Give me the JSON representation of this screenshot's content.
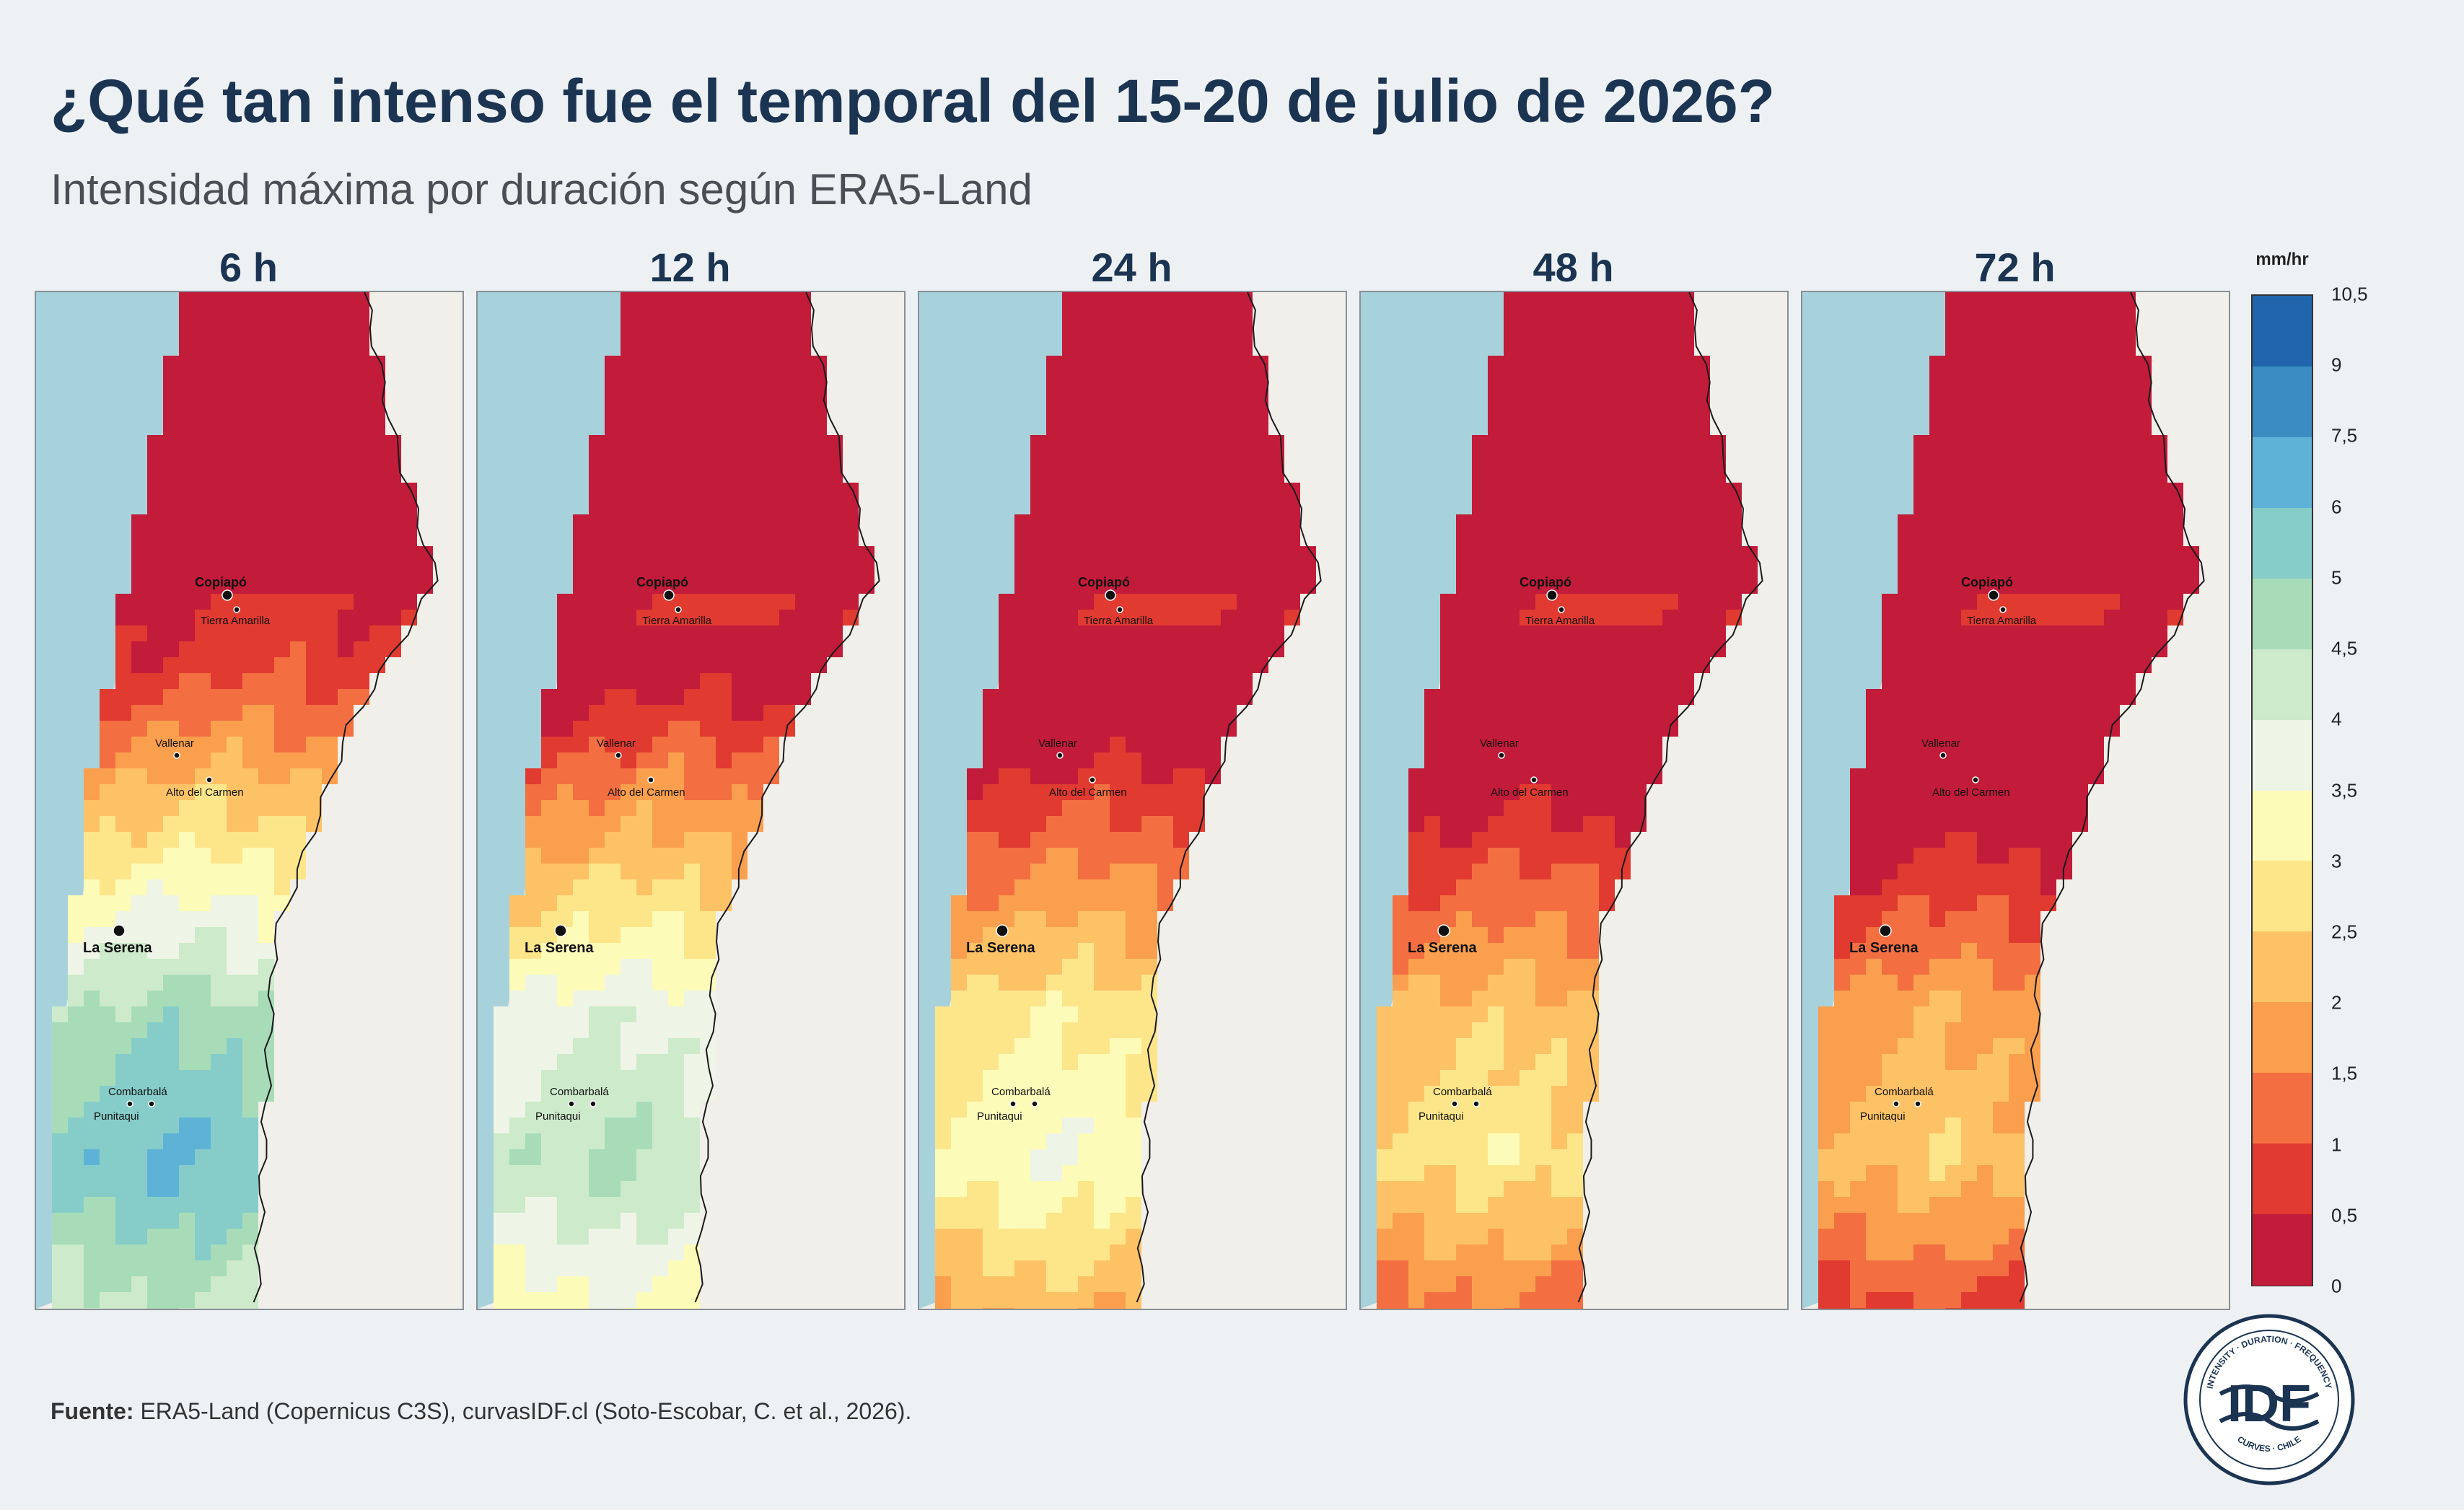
{
  "header": {
    "title": "¿Qué tan intenso fue el temporal del 15-20 de julio de 2026?",
    "subtitle": "Intensidad máxima por duración según ERA5-Land"
  },
  "panels": [
    {
      "label": "6 h",
      "shift": 0.0
    },
    {
      "label": "12 h",
      "shift": 1.5
    },
    {
      "label": "24 h",
      "shift": 3.2
    },
    {
      "label": "48 h",
      "shift": 4.2
    },
    {
      "label": "72 h",
      "shift": 4.9
    }
  ],
  "map_labels": {
    "copiapo": "Copiapó",
    "tierra_amarilla": "Tierra Amarilla",
    "vallenar": "Vallenar",
    "alto_del_carmen": "Alto del Carmen",
    "la_serena": "La Serena",
    "combarbala": "Combarbalá",
    "punitaqui": "Punitaqui"
  },
  "legend": {
    "unit": "mm/hr",
    "ticks": [
      "10,5",
      "9",
      "7,5",
      "6",
      "5",
      "4,5",
      "4",
      "3,5",
      "3",
      "2,5",
      "2",
      "1,5",
      "1",
      "0,5",
      "0"
    ],
    "colors": [
      "#2166ac",
      "#3a8cc3",
      "#5eb2d6",
      "#86cdc9",
      "#a8dcb8",
      "#cdeacb",
      "#eef4e6",
      "#fdfbb8",
      "#fde68a",
      "#fdc266",
      "#fa9f4e",
      "#f36f41",
      "#e03a31",
      "#c31b3a"
    ]
  },
  "source": {
    "label": "Fuente:",
    "text": " ERA5-Land (Copernicus C3S), curvasIDF.cl (Soto-Escobar, C. et al., 2026)."
  },
  "logo": {
    "main": "IDF",
    "top_arc": "INTENSITY · DURATION · FREQUENCY",
    "bottom_arc": "CURVES · CHILE"
  },
  "colors": {
    "ocean": "#a7d2dc",
    "land": "#f1efe9",
    "title": "#1b3452"
  }
}
